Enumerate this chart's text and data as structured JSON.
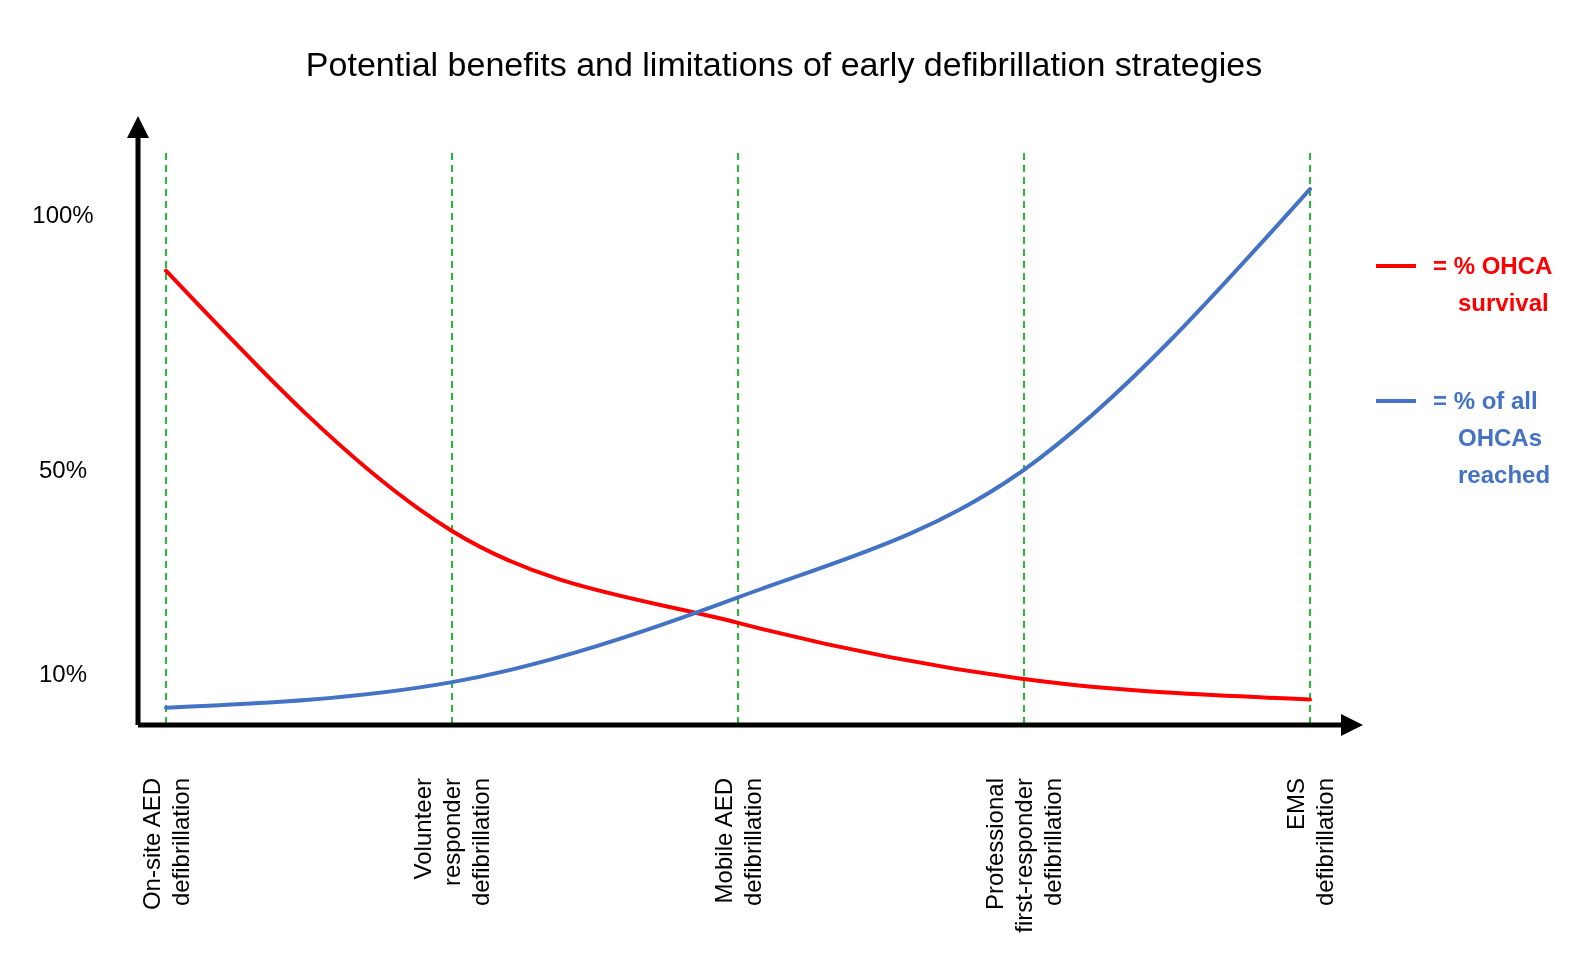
{
  "chart_data": {
    "type": "line",
    "title": "Potential benefits and limitations of early defibrillation strategies",
    "categories": [
      "On-site AED defibrillation",
      "Volunteer responder defibrillation",
      "Mobile AED defibrillation",
      "Professional first-responder defibrillation",
      "EMS defibrillation"
    ],
    "series": [
      {
        "name": "= % OHCA survival",
        "color": "#ff0000",
        "values": [
          89,
          38,
          20,
          9,
          5
        ]
      },
      {
        "name": "= % of all OHCAs reached",
        "color": "#4472c4",
        "values": [
          3.4,
          8.4,
          25,
          50,
          105
        ]
      }
    ],
    "ylim": [
      0,
      115
    ],
    "yticks": [
      {
        "value": 10,
        "label": "10%"
      },
      {
        "value": 50,
        "label": "50%"
      },
      {
        "value": 100,
        "label": "100%"
      }
    ],
    "grid": "x",
    "legend": "right",
    "marker": "none",
    "line_style": "solid"
  }
}
